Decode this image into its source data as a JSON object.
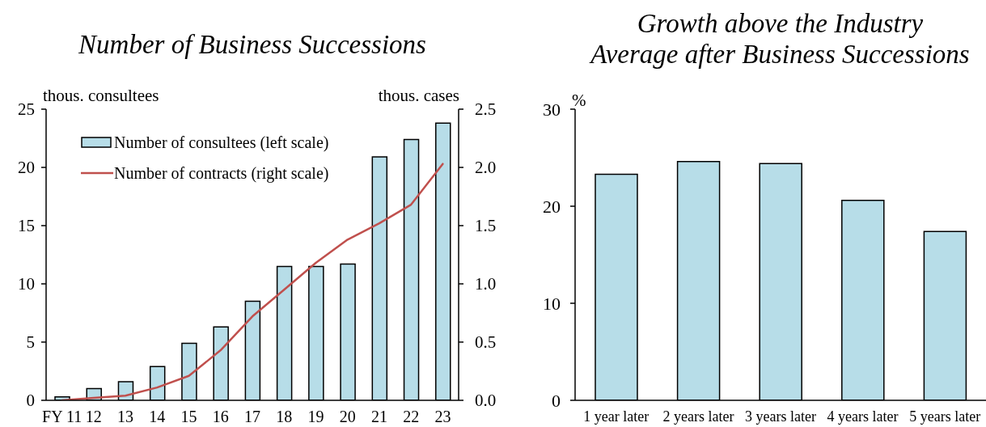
{
  "chart_data": [
    {
      "type": "bar",
      "title": "Number of Business Successions",
      "ylabel": "thous. consultees",
      "y2label": "thous. cases",
      "categories": [
        "FY 11",
        "12",
        "13",
        "14",
        "15",
        "16",
        "17",
        "18",
        "19",
        "20",
        "21",
        "22",
        "23"
      ],
      "series": [
        {
          "name": "Number of consultees (left scale)",
          "color": "#b7dde8",
          "values": [
            0.3,
            1.0,
            1.6,
            2.9,
            4.9,
            6.3,
            8.5,
            11.5,
            11.5,
            11.7,
            20.9,
            22.4,
            23.8
          ]
        },
        {
          "name": "Number of contracts (right scale)",
          "type": "line",
          "axis": "y2",
          "color": "#c0504d",
          "values": [
            0.0,
            0.02,
            0.04,
            0.11,
            0.21,
            0.43,
            0.72,
            0.95,
            1.18,
            1.38,
            1.52,
            1.68,
            2.03
          ]
        }
      ],
      "ylim": [
        0,
        25
      ],
      "yticks": [
        0,
        5,
        10,
        15,
        20,
        25
      ],
      "y2lim": [
        0,
        2.5
      ],
      "y2ticks": [
        {
          "value": 0,
          "label": "0.0"
        },
        {
          "value": 0.5,
          "label": "0.5"
        },
        {
          "value": 1,
          "label": "1.0"
        },
        {
          "value": 1.5,
          "label": "1.5"
        },
        {
          "value": 2,
          "label": "2.0"
        },
        {
          "value": 2.5,
          "label": "2.5"
        }
      ],
      "legend": "top left",
      "marker": "none"
    },
    {
      "type": "bar",
      "title": "Growth above the Industry\nAverage after Business Successions",
      "ylabel": "%",
      "categories": [
        "1 year later",
        "2 years later",
        "3 years later",
        "4 years later",
        "5 years later"
      ],
      "values": [
        23.3,
        24.6,
        24.4,
        20.6,
        17.4
      ],
      "color": "#b7dde8",
      "ylim": [
        0,
        30
      ],
      "yticks": [
        0,
        10,
        20,
        30
      ]
    }
  ]
}
